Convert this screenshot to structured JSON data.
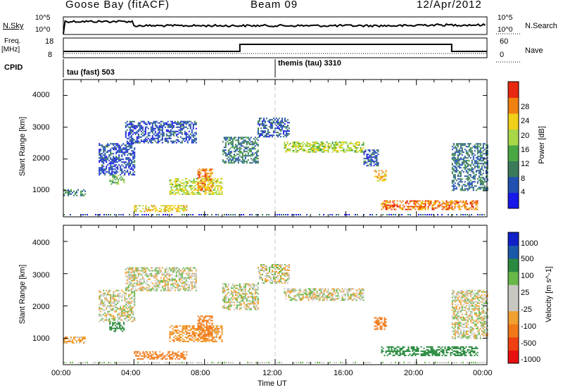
{
  "header": {
    "station": "Goose Bay (fitACF)",
    "beam": "Beam 09",
    "date": "12/Apr/2012"
  },
  "nsky_panel": {
    "left_label": "N.Sky",
    "left_ticks": [
      "10^5",
      "10^0"
    ],
    "right_label": "N.Search",
    "right_ticks": [
      "10^5",
      "10^0"
    ]
  },
  "freq_panel": {
    "left_label_1": "Freq.",
    "left_label_2": "[MHz]",
    "left_ticks": [
      "18",
      "8"
    ],
    "right_label": "Nave",
    "right_ticks": [
      "60",
      "0"
    ]
  },
  "cpid": {
    "label": "CPID",
    "modes": [
      {
        "name": "tau (fast) 503",
        "start_hour": 0
      },
      {
        "name": "themis (tau) 3310",
        "start_hour": 12
      }
    ]
  },
  "colors": {
    "power_scale": [
      "#1818e8",
      "#2050b0",
      "#3a7a5a",
      "#4aa844",
      "#a8d848",
      "#f0d018",
      "#f08010",
      "#e82810"
    ],
    "velocity_scale": [
      "#e81010",
      "#f04010",
      "#f07818",
      "#f0a030",
      "#c8c8c0",
      "#c8c8c0",
      "#68b848",
      "#2a8a40",
      "#1a5aa8",
      "#1020c8"
    ],
    "dashed_marker": "#c8c8c8"
  },
  "chart_data": [
    {
      "type": "heatmap",
      "name": "Power panel",
      "ylabel": "Slant Range [km]",
      "yticks": [
        "1000",
        "2000",
        "3000",
        "4000"
      ],
      "ylim": [
        180,
        4500
      ],
      "xlim": [
        0,
        24
      ],
      "colorbar": {
        "label": "Power [dB]",
        "ticks": [
          "4",
          "8",
          "12",
          "16",
          "20",
          "24",
          "28"
        ],
        "range": [
          0,
          30
        ]
      },
      "echo_regions": [
        {
          "t_start": 0.0,
          "t_end": 1.2,
          "r_start": 850,
          "r_end": 1050,
          "value": 10
        },
        {
          "t_start": 2.0,
          "t_end": 4.0,
          "r_start": 1500,
          "r_end": 2500,
          "value": 5
        },
        {
          "t_start": 2.6,
          "t_end": 3.4,
          "r_start": 1200,
          "r_end": 1500,
          "value": 14
        },
        {
          "t_start": 3.5,
          "t_end": 7.5,
          "r_start": 2500,
          "r_end": 3200,
          "value": 5
        },
        {
          "t_start": 4.0,
          "t_end": 7.0,
          "r_start": 350,
          "r_end": 550,
          "value": 20
        },
        {
          "t_start": 6.0,
          "t_end": 9.0,
          "r_start": 900,
          "r_end": 1400,
          "value": 18
        },
        {
          "t_start": 7.6,
          "t_end": 8.4,
          "r_start": 1000,
          "r_end": 1700,
          "value": 24
        },
        {
          "t_start": 9.0,
          "t_end": 11.0,
          "r_start": 1900,
          "r_end": 2700,
          "value": 9
        },
        {
          "t_start": 11.0,
          "t_end": 12.8,
          "r_start": 2700,
          "r_end": 3300,
          "value": 6
        },
        {
          "t_start": 12.5,
          "t_end": 17.0,
          "r_start": 2200,
          "r_end": 2550,
          "value": 17
        },
        {
          "t_start": 17.0,
          "t_end": 17.8,
          "r_start": 1800,
          "r_end": 2300,
          "value": 6
        },
        {
          "t_start": 17.6,
          "t_end": 18.3,
          "r_start": 1300,
          "r_end": 1650,
          "value": 22
        },
        {
          "t_start": 18.0,
          "t_end": 23.5,
          "r_start": 400,
          "r_end": 700,
          "value": 25
        },
        {
          "t_start": 22.0,
          "t_end": 24.0,
          "r_start": 1000,
          "r_end": 2500,
          "value": 8
        }
      ]
    },
    {
      "type": "heatmap",
      "name": "Velocity panel",
      "ylabel": "Slant Range [km]",
      "yticks": [
        "1000",
        "2000",
        "3000",
        "4000"
      ],
      "ylim": [
        180,
        4500
      ],
      "xlim": [
        0,
        24
      ],
      "xticks": [
        "00:00",
        "04:00",
        "08:00",
        "12:00",
        "16:00",
        "20:00",
        "00:00"
      ],
      "xlabel": "Time UT",
      "colorbar": {
        "label": "Velocity [m s^-1]",
        "ticks": [
          "-1000",
          "-500",
          "-100",
          "-25",
          "25",
          "100",
          "500",
          "1000"
        ]
      },
      "echo_regions": [
        {
          "t_start": 0.0,
          "t_end": 1.2,
          "r_start": 850,
          "r_end": 1050,
          "value": -60
        },
        {
          "t_start": 2.0,
          "t_end": 4.0,
          "r_start": 1500,
          "r_end": 2500,
          "value": 0
        },
        {
          "t_start": 2.6,
          "t_end": 3.4,
          "r_start": 1200,
          "r_end": 1500,
          "value": 150
        },
        {
          "t_start": 3.5,
          "t_end": 7.5,
          "r_start": 2500,
          "r_end": 3200,
          "value": 0
        },
        {
          "t_start": 4.0,
          "t_end": 7.0,
          "r_start": 350,
          "r_end": 600,
          "value": -150
        },
        {
          "t_start": 6.0,
          "t_end": 9.0,
          "r_start": 900,
          "r_end": 1400,
          "value": -80
        },
        {
          "t_start": 7.6,
          "t_end": 8.4,
          "r_start": 1000,
          "r_end": 1700,
          "value": -200
        },
        {
          "t_start": 9.0,
          "t_end": 11.0,
          "r_start": 1900,
          "r_end": 2700,
          "value": 0
        },
        {
          "t_start": 11.0,
          "t_end": 12.8,
          "r_start": 2700,
          "r_end": 3300,
          "value": 0
        },
        {
          "t_start": 12.5,
          "t_end": 17.0,
          "r_start": 2200,
          "r_end": 2550,
          "value": 0
        },
        {
          "t_start": 17.6,
          "t_end": 18.3,
          "r_start": 1300,
          "r_end": 1650,
          "value": -150
        },
        {
          "t_start": 18.0,
          "t_end": 23.5,
          "r_start": 450,
          "r_end": 750,
          "value": 200
        },
        {
          "t_start": 22.0,
          "t_end": 24.0,
          "r_start": 1000,
          "r_end": 2500,
          "value": 0
        }
      ]
    }
  ]
}
